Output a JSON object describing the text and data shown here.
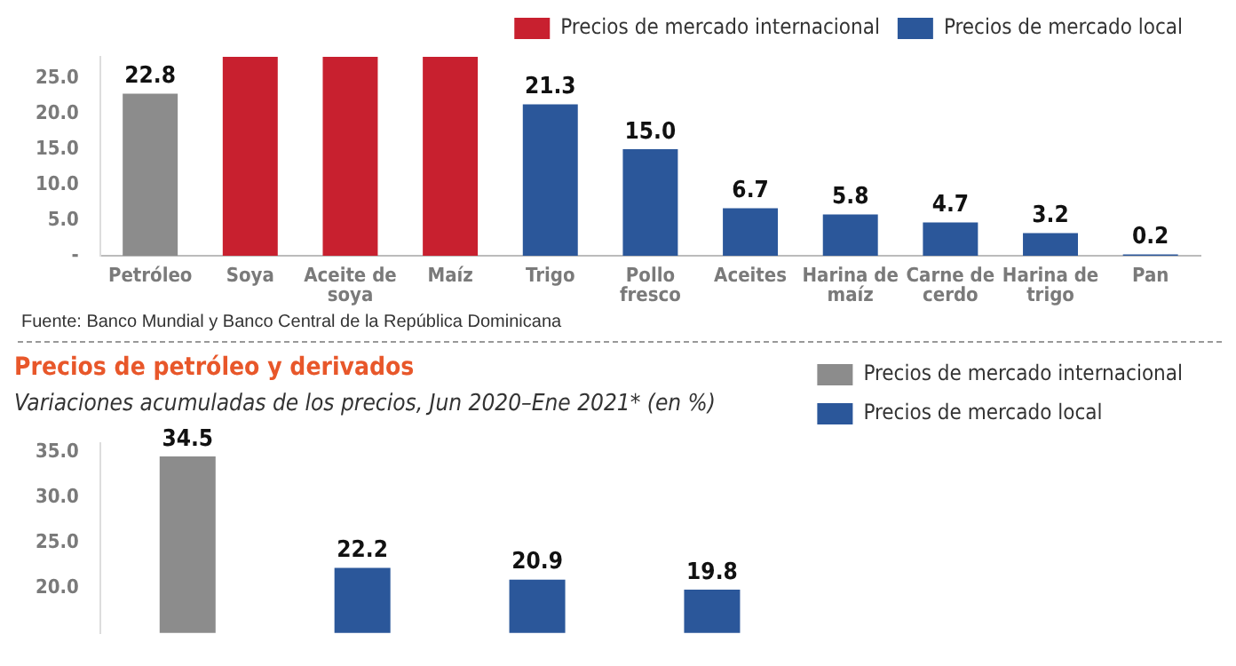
{
  "chart_data": [
    {
      "type": "bar",
      "categories": [
        "Petróleo",
        "Soya",
        "Aceite de soya",
        "Maíz",
        "Trigo",
        "Pollo fresco",
        "Aceites",
        "Harina de maíz",
        "Carne de cerdo",
        "Harina de trigo",
        "Pan"
      ],
      "series": [
        {
          "color": "#8c8c8c",
          "values": [
            22.8,
            null,
            null,
            null,
            null,
            null,
            null,
            null,
            null,
            null,
            null
          ],
          "value_labels": [
            "22.8",
            null,
            null,
            null,
            null,
            null,
            null,
            null,
            null,
            null,
            null
          ]
        },
        {
          "name": "Precios de mercado internacional",
          "color": "#c8202f",
          "values": [
            null,
            28,
            28,
            28,
            null,
            null,
            null,
            null,
            null,
            null,
            null
          ],
          "value_labels": [
            null,
            null,
            null,
            null,
            null,
            null,
            null,
            null,
            null,
            null,
            null
          ]
        },
        {
          "name": "Precios de mercado local",
          "color": "#2b579a",
          "values": [
            null,
            null,
            null,
            null,
            21.3,
            15.0,
            6.7,
            5.8,
            4.7,
            3.2,
            0.2
          ],
          "value_labels": [
            null,
            null,
            null,
            null,
            "21.3",
            "15.0",
            "6.7",
            "5.8",
            "4.7",
            "3.2",
            "0.2"
          ]
        }
      ],
      "ylim": [
        0,
        28
      ],
      "yticks": [
        {
          "value": 0,
          "label": "-"
        },
        {
          "value": 5,
          "label": "5.0"
        },
        {
          "value": 10,
          "label": "10.0"
        },
        {
          "value": 15,
          "label": "15.0"
        },
        {
          "value": 20,
          "label": "20.0"
        },
        {
          "value": 25,
          "label": "25.0"
        }
      ],
      "grid": false,
      "legend": "top right",
      "stacked": true,
      "annotations": [
        "Fuente: Banco Mundial y Banco Central de la República Dominicana"
      ]
    },
    {
      "type": "bar",
      "title": "Precios de petróleo y derivados",
      "subtitle": "Variaciones acumuladas de los precios, Jun 2020–Ene 2021* (en %)",
      "categories": [
        null,
        null,
        null,
        null
      ],
      "series": [
        {
          "name": "Precios de mercado internacional",
          "color": "#8c8c8c",
          "values": [
            34.5,
            null,
            null,
            null
          ]
        },
        {
          "name": "Precios de mercado local",
          "color": "#2b579a",
          "values": [
            null,
            22.2,
            20.9,
            19.8
          ]
        }
      ],
      "ylim": [
        15,
        36
      ],
      "yticks": [
        {
          "value": 20,
          "label": "20.0"
        },
        {
          "value": 25,
          "label": "25.0"
        },
        {
          "value": 30,
          "label": "30.0"
        },
        {
          "value": 35,
          "label": "35.0"
        }
      ],
      "grid": false,
      "legend": "top right",
      "tick_labels": "y",
      "data_labels": true,
      "stacked": true
    }
  ]
}
